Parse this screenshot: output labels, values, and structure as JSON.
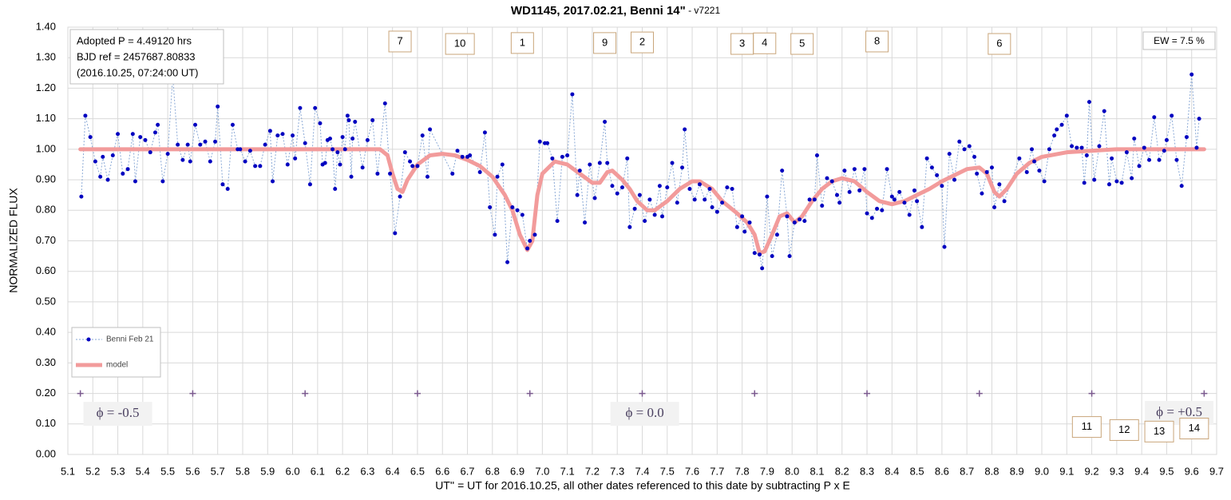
{
  "chart_data": {
    "type": "line",
    "title": "WD1145, 2017.02.21, Benni 14\"",
    "subtitle": " - v7221",
    "xlabel": "UT'' = UT for 2016.10.25, all other dates referenced to this date by subtracting P x E",
    "ylabel": "NORMALIZED FLUX",
    "xlim": [
      5.1,
      9.7
    ],
    "ylim": [
      0,
      1.4
    ],
    "xticks": [
      5.1,
      5.2,
      5.3,
      5.4,
      5.5,
      5.6,
      5.7,
      5.8,
      5.9,
      {
        "value": 6,
        "label": "6.0"
      },
      6.1,
      6.2,
      6.3,
      6.4,
      6.5,
      6.6,
      6.7,
      6.8,
      6.9,
      {
        "value": 7,
        "label": "7.0"
      },
      7.1,
      7.2,
      7.3,
      7.4,
      7.5,
      7.6,
      7.7,
      7.8,
      7.9,
      {
        "value": 8,
        "label": "8.0"
      },
      8.1,
      8.2,
      8.3,
      8.4,
      8.5,
      8.6,
      8.7,
      8.8,
      8.9,
      {
        "value": 9,
        "label": "9.0"
      },
      9.1,
      9.2,
      9.3,
      9.4,
      9.5,
      9.6,
      9.7
    ],
    "yticks": [
      {
        "value": 0,
        "label": "0.00"
      },
      {
        "value": 0.1,
        "label": "0.10"
      },
      {
        "value": 0.2,
        "label": "0.20"
      },
      {
        "value": 0.3,
        "label": "0.30"
      },
      {
        "value": 0.4,
        "label": "0.40"
      },
      {
        "value": 0.5,
        "label": "0.50"
      },
      {
        "value": 0.6,
        "label": "0.60"
      },
      {
        "value": 0.7,
        "label": "0.70"
      },
      {
        "value": 0.8,
        "label": "0.80"
      },
      {
        "value": 0.9,
        "label": "0.90"
      },
      {
        "value": 1,
        "label": "1.00"
      },
      {
        "value": 1.1,
        "label": "1.10"
      },
      {
        "value": 1.2,
        "label": "1.20"
      },
      {
        "value": 1.3,
        "label": "1.30"
      },
      {
        "value": 1.4,
        "label": "1.40"
      }
    ],
    "grid": true,
    "legend": "lower left",
    "info_lines": [
      "Adopted P = 4.49120 hrs",
      "BJD ref = 2457687.80833",
      "(2016.10.25, 07:24:00 UT)"
    ],
    "ew_label": "EW = 7.5 %",
    "series": [
      {
        "name": "model",
        "color": "#f29b9b",
        "x": [
          5.15,
          6.35,
          6.38,
          6.4,
          6.42,
          6.44,
          6.46,
          6.5,
          6.55,
          6.6,
          6.65,
          6.7,
          6.75,
          6.8,
          6.85,
          6.88,
          6.91,
          6.94,
          6.96,
          6.98,
          7.0,
          7.05,
          7.1,
          7.15,
          7.2,
          7.23,
          7.26,
          7.28,
          7.32,
          7.35,
          7.38,
          7.42,
          7.45,
          7.5,
          7.55,
          7.6,
          7.63,
          7.68,
          7.72,
          7.78,
          7.82,
          7.85,
          7.87,
          7.89,
          7.92,
          7.95,
          7.98,
          8.01,
          8.04,
          8.08,
          8.12,
          8.16,
          8.2,
          8.25,
          8.3,
          8.35,
          8.4,
          8.45,
          8.5,
          8.55,
          8.6,
          8.65,
          8.7,
          8.75,
          8.78,
          8.81,
          8.83,
          8.86,
          8.9,
          8.95,
          9.0,
          9.1,
          9.2,
          9.3,
          9.65
        ],
        "values": [
          1.0,
          1.0,
          0.98,
          0.92,
          0.87,
          0.86,
          0.9,
          0.95,
          0.98,
          0.985,
          0.98,
          0.965,
          0.945,
          0.91,
          0.85,
          0.8,
          0.72,
          0.67,
          0.7,
          0.85,
          0.92,
          0.96,
          0.95,
          0.92,
          0.89,
          0.89,
          0.925,
          0.93,
          0.9,
          0.87,
          0.83,
          0.8,
          0.8,
          0.83,
          0.87,
          0.895,
          0.895,
          0.87,
          0.83,
          0.79,
          0.76,
          0.72,
          0.66,
          0.665,
          0.72,
          0.78,
          0.79,
          0.76,
          0.78,
          0.83,
          0.87,
          0.895,
          0.905,
          0.895,
          0.86,
          0.83,
          0.82,
          0.83,
          0.85,
          0.87,
          0.895,
          0.915,
          0.935,
          0.94,
          0.92,
          0.86,
          0.845,
          0.87,
          0.92,
          0.955,
          0.975,
          0.99,
          0.995,
          1.0,
          1.0
        ]
      },
      {
        "name": "Benni Feb 21",
        "color": "#0000c0",
        "x": [
          5.154,
          5.17,
          5.19,
          5.21,
          5.23,
          5.24,
          5.26,
          5.28,
          5.3,
          5.32,
          5.34,
          5.36,
          5.37,
          5.39,
          5.41,
          5.43,
          5.45,
          5.46,
          5.48,
          5.5,
          5.52,
          5.54,
          5.56,
          5.58,
          5.59,
          5.61,
          5.63,
          5.65,
          5.67,
          5.69,
          5.7,
          5.72,
          5.74,
          5.76,
          5.78,
          5.79,
          5.81,
          5.83,
          5.85,
          5.87,
          5.89,
          5.91,
          5.92,
          5.94,
          5.96,
          5.98,
          6.0,
          6.01,
          6.03,
          6.05,
          6.07,
          6.09,
          6.11,
          6.12,
          6.13,
          6.14,
          6.15,
          6.16,
          6.17,
          6.18,
          6.19,
          6.2,
          6.21,
          6.22,
          6.225,
          6.235,
          6.24,
          6.25,
          6.28,
          6.3,
          6.32,
          6.34,
          6.37,
          6.39,
          6.41,
          6.43,
          6.45,
          6.47,
          6.48,
          6.5,
          6.52,
          6.54,
          6.55,
          6.64,
          6.66,
          6.68,
          6.7,
          6.71,
          6.75,
          6.77,
          6.79,
          6.81,
          6.82,
          6.84,
          6.86,
          6.88,
          6.9,
          6.92,
          6.94,
          6.95,
          6.97,
          6.99,
          7.01,
          7.02,
          7.04,
          7.06,
          7.08,
          7.1,
          7.12,
          7.14,
          7.15,
          7.17,
          7.19,
          7.21,
          7.23,
          7.25,
          7.26,
          7.28,
          7.3,
          7.32,
          7.34,
          7.35,
          7.37,
          7.39,
          7.41,
          7.43,
          7.45,
          7.47,
          7.48,
          7.5,
          7.52,
          7.54,
          7.56,
          7.57,
          7.59,
          7.61,
          7.63,
          7.65,
          7.67,
          7.68,
          7.7,
          7.72,
          7.74,
          7.76,
          7.78,
          7.8,
          7.81,
          7.83,
          7.85,
          7.87,
          7.88,
          7.9,
          7.92,
          7.94,
          7.96,
          7.98,
          7.99,
          8.01,
          8.03,
          8.05,
          8.07,
          8.09,
          8.1,
          8.12,
          8.14,
          8.16,
          8.18,
          8.19,
          8.21,
          8.23,
          8.25,
          8.27,
          8.29,
          8.3,
          8.32,
          8.34,
          8.36,
          8.38,
          8.4,
          8.41,
          8.43,
          8.45,
          8.47,
          8.49,
          8.5,
          8.52,
          8.54,
          8.56,
          8.58,
          8.6,
          8.61,
          8.63,
          8.65,
          8.67,
          8.69,
          8.71,
          8.73,
          8.74,
          8.76,
          8.78,
          8.8,
          8.81,
          8.83,
          8.85,
          8.91,
          8.94,
          8.96,
          8.97,
          8.99,
          9.01,
          9.03,
          9.05,
          9.06,
          9.08,
          9.1,
          9.12,
          9.14,
          9.16,
          9.17,
          9.18,
          9.19,
          9.21,
          9.23,
          9.25,
          9.27,
          9.28,
          9.3,
          9.32,
          9.34,
          9.36,
          9.37,
          9.39,
          9.41,
          9.43,
          9.45,
          9.47,
          9.49,
          9.5,
          9.52,
          9.54,
          9.56,
          9.58,
          9.6,
          9.62,
          9.63
        ],
        "values": [
          0.845,
          1.11,
          1.04,
          0.96,
          0.91,
          0.975,
          0.9,
          0.98,
          1.05,
          0.92,
          0.935,
          1.05,
          0.895,
          1.04,
          1.03,
          0.99,
          1.055,
          1.08,
          0.895,
          0.985,
          1.24,
          1.015,
          0.965,
          1.015,
          0.96,
          1.08,
          1.015,
          1.025,
          0.96,
          1.025,
          1.14,
          0.885,
          0.87,
          1.08,
          1.0,
          1.0,
          0.96,
          0.995,
          0.945,
          0.945,
          1.015,
          1.06,
          0.895,
          1.045,
          1.05,
          0.95,
          1.045,
          0.97,
          1.135,
          1.02,
          0.885,
          1.135,
          1.085,
          0.95,
          0.955,
          1.03,
          1.035,
          1.0,
          0.87,
          0.99,
          0.95,
          1.04,
          1.0,
          1.11,
          1.095,
          0.91,
          1.035,
          1.09,
          0.94,
          1.03,
          1.095,
          0.92,
          1.15,
          0.92,
          0.725,
          0.845,
          0.99,
          0.96,
          0.945,
          0.945,
          1.045,
          0.91,
          1.065,
          0.92,
          0.995,
          0.975,
          0.975,
          0.98,
          0.925,
          1.055,
          0.81,
          0.72,
          0.91,
          0.95,
          0.63,
          0.81,
          0.8,
          0.785,
          0.675,
          0.7,
          0.72,
          1.025,
          1.02,
          1.02,
          0.97,
          0.765,
          0.975,
          0.98,
          1.18,
          0.85,
          0.93,
          0.76,
          0.95,
          0.84,
          0.955,
          1.09,
          0.955,
          0.88,
          0.855,
          0.875,
          0.97,
          0.745,
          0.805,
          0.85,
          0.765,
          0.835,
          0.785,
          0.88,
          0.78,
          0.875,
          0.955,
          0.825,
          0.94,
          1.065,
          0.87,
          0.835,
          0.885,
          0.835,
          0.87,
          0.81,
          0.795,
          0.825,
          0.875,
          0.87,
          0.745,
          0.78,
          0.73,
          0.76,
          0.66,
          0.655,
          0.61,
          0.845,
          0.65,
          0.72,
          0.93,
          0.78,
          0.65,
          0.76,
          0.77,
          0.765,
          0.835,
          0.835,
          0.98,
          0.815,
          0.905,
          0.895,
          0.85,
          0.825,
          0.93,
          0.86,
          0.935,
          0.865,
          0.935,
          0.79,
          0.775,
          0.805,
          0.8,
          0.935,
          0.845,
          0.835,
          0.86,
          0.825,
          0.785,
          0.865,
          0.83,
          0.745,
          0.97,
          0.94,
          0.915,
          0.88,
          0.68,
          0.985,
          0.9,
          1.025,
          1.0,
          1.01,
          0.975,
          0.92,
          0.855,
          0.925,
          0.94,
          0.81,
          0.885,
          0.83,
          0.97,
          0.925,
          1.0,
          0.96,
          0.93,
          0.895,
          1.0,
          1.045,
          1.065,
          1.08,
          1.11,
          1.01,
          1.005,
          1.005,
          0.89,
          0.98,
          1.155,
          0.9,
          1.01,
          1.125,
          0.885,
          0.97,
          0.895,
          0.89,
          0.99,
          0.905,
          1.035,
          0.945,
          1.005,
          0.965,
          1.105,
          0.965,
          0.995,
          1.03,
          1.11,
          0.965,
          0.88,
          1.04,
          1.245,
          1.005,
          1.1
        ]
      }
    ],
    "phase_markers": {
      "x": [
        5.15,
        5.6,
        6.05,
        6.5,
        6.95,
        7.4,
        7.85,
        8.3,
        8.75,
        9.2,
        9.65
      ],
      "values": [
        0.2,
        0.2,
        0.2,
        0.2,
        0.2,
        0.2,
        0.2,
        0.2,
        0.2,
        0.2,
        0.2
      ],
      "color": "#7b5a8f"
    },
    "phase_labels": [
      {
        "text": "ϕ = -0.5",
        "x": 5.3,
        "y": 0.133
      },
      {
        "text": "ϕ = 0.0",
        "x": 7.41,
        "y": 0.133
      },
      {
        "text": "ϕ = +0.5",
        "x": 9.55,
        "y": 0.136
      }
    ],
    "dip_labels": [
      {
        "text": "7",
        "x": 6.43,
        "y": 1.353
      },
      {
        "text": "10",
        "x": 6.67,
        "y": 1.345
      },
      {
        "text": "1",
        "x": 6.92,
        "y": 1.348
      },
      {
        "text": "9",
        "x": 7.25,
        "y": 1.348
      },
      {
        "text": "2",
        "x": 7.4,
        "y": 1.35
      },
      {
        "text": "3",
        "x": 7.8,
        "y": 1.345
      },
      {
        "text": "4",
        "x": 7.89,
        "y": 1.347
      },
      {
        "text": "5",
        "x": 8.04,
        "y": 1.345
      },
      {
        "text": "8",
        "x": 8.34,
        "y": 1.353
      },
      {
        "text": "6",
        "x": 8.83,
        "y": 1.345
      },
      {
        "text": "11",
        "x": 9.18,
        "y": 0.09
      },
      {
        "text": "12",
        "x": 9.33,
        "y": 0.08
      },
      {
        "text": "13",
        "x": 9.47,
        "y": 0.075
      },
      {
        "text": "14",
        "x": 9.61,
        "y": 0.085
      }
    ]
  }
}
